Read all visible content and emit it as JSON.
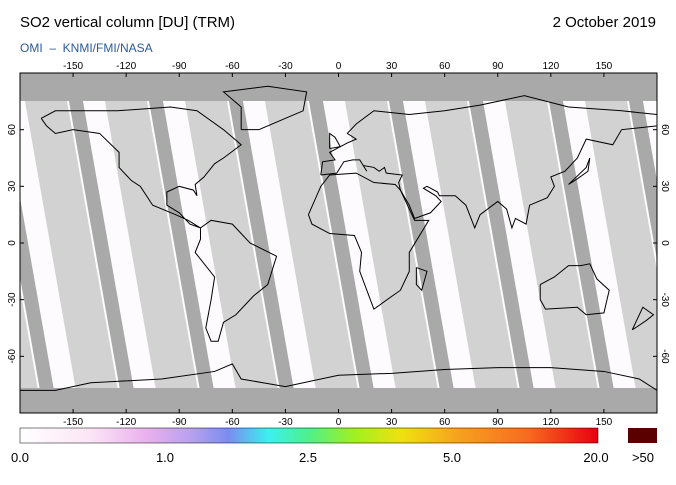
{
  "header": {
    "title": "SO2 vertical column [DU] (TRM)",
    "date": "2 October 2019",
    "credit": "OMI  –  KNMI/FMI/NASA"
  },
  "map": {
    "lon_range": [
      -180,
      180
    ],
    "lat_range": [
      -90,
      90
    ],
    "lon_ticks": [
      -150,
      -120,
      -90,
      -60,
      -30,
      0,
      30,
      60,
      90,
      120,
      150
    ],
    "lat_ticks": [
      60,
      30,
      0,
      -30,
      -60
    ]
  },
  "colorbar": {
    "labels": [
      "0.0",
      "1.0",
      "2.5",
      "5.0",
      "20.0",
      ">50"
    ]
  }
}
